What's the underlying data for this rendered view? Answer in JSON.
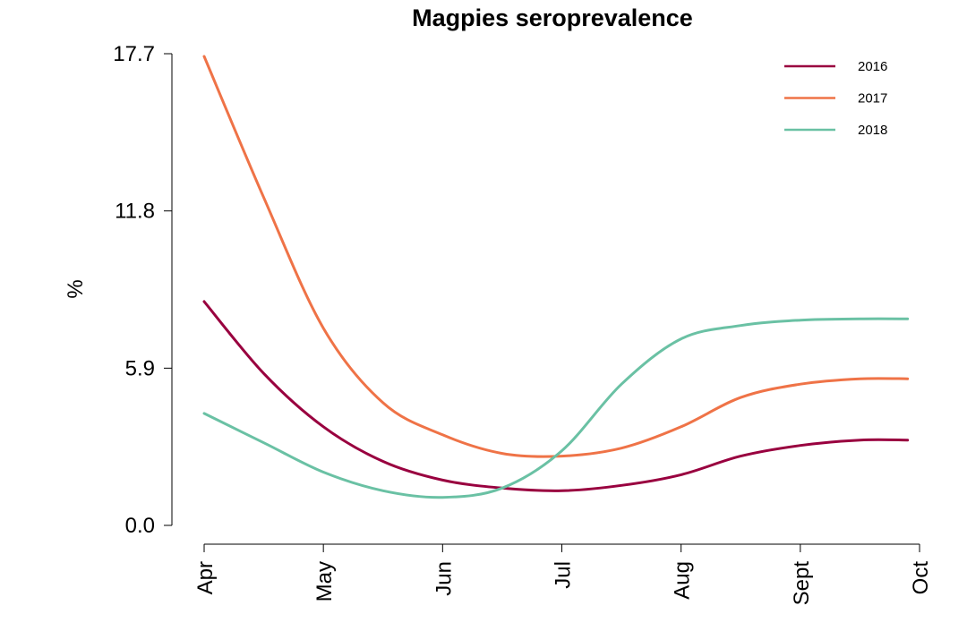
{
  "chart_data": {
    "type": "line",
    "title": "Magpies seroprevalence",
    "xlabel": "",
    "ylabel": "%",
    "x_ticks": [
      "Apr",
      "May",
      "Jun",
      "Jul",
      "Aug",
      "Sept",
      "Oct"
    ],
    "y_ticks": [
      "0.0",
      "5.9",
      "11.8",
      "17.7"
    ],
    "ylim": [
      0,
      17.7
    ],
    "xlim": [
      0,
      6
    ],
    "grid": false,
    "legend_position": "top-right",
    "series": [
      {
        "name": "2016",
        "color": "#99003f",
        "x": [
          0,
          0.5,
          1.0,
          1.5,
          2.0,
          2.5,
          3.0,
          3.5,
          4.0,
          4.5,
          5.0,
          5.5,
          5.9
        ],
        "y": [
          8.4,
          5.7,
          3.7,
          2.4,
          1.7,
          1.4,
          1.3,
          1.5,
          1.9,
          2.6,
          3.0,
          3.2,
          3.2
        ]
      },
      {
        "name": "2017",
        "color": "#ef7347",
        "x": [
          0,
          0.5,
          1.0,
          1.5,
          2.0,
          2.5,
          3.0,
          3.5,
          4.0,
          4.5,
          5.0,
          5.5,
          5.9
        ],
        "y": [
          17.6,
          12.3,
          7.4,
          4.6,
          3.4,
          2.7,
          2.6,
          2.9,
          3.7,
          4.8,
          5.3,
          5.5,
          5.5
        ]
      },
      {
        "name": "2018",
        "color": "#6ac1a4",
        "x": [
          0,
          0.5,
          1.0,
          1.5,
          2.0,
          2.5,
          3.0,
          3.5,
          4.0,
          4.5,
          5.0,
          5.5,
          5.9
        ],
        "y": [
          4.2,
          3.1,
          2.0,
          1.3,
          1.05,
          1.4,
          2.8,
          5.3,
          7.0,
          7.5,
          7.7,
          7.75,
          7.75
        ]
      }
    ]
  }
}
